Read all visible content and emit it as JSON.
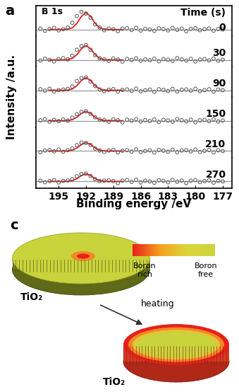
{
  "figure": {
    "panel_label": "a",
    "spectrum_label": "B 1s",
    "time_header": "Time (s)",
    "xlabel": "Binding energy /eV",
    "ylabel": "Intensity /a.u."
  },
  "chart_data": [
    {
      "type": "line",
      "title": "0",
      "xlim": [
        197.5,
        176
      ],
      "xticks": [
        195,
        192,
        189,
        186,
        183,
        180,
        177
      ],
      "ylim": [
        -0.4,
        1.4
      ],
      "yticks": [],
      "tick_labels": false,
      "series": [
        {
          "type": "line",
          "color": "#999999",
          "line_style": "solid",
          "x": [
            197.5,
            176
          ],
          "values": [
            0,
            0
          ]
        },
        {
          "type": "scatter",
          "marker": "o",
          "color": "#555555",
          "x": [
            197,
            196.5,
            196,
            195.5,
            195,
            194.5,
            194,
            193.5,
            193,
            192.5,
            192,
            191.5,
            191,
            190.5,
            190,
            189.5,
            189,
            188.5,
            188,
            187.5,
            187,
            186.5,
            186,
            185.5,
            185,
            184.5,
            184,
            183.5,
            183,
            182.5,
            182,
            181.5,
            181,
            180.5,
            180,
            179.5,
            179,
            178.5,
            178,
            177.5,
            177
          ],
          "values": [
            0.05,
            -0.08,
            0.03,
            0.1,
            -0.05,
            0.02,
            0.12,
            0.4,
            0.8,
            1.05,
            0.95,
            0.7,
            0.3,
            0.12,
            -0.04,
            0.06,
            0.02,
            -0.1,
            0.05,
            0.08,
            -0.03,
            0.1,
            -0.06,
            0.04,
            0.0,
            -0.08,
            0.07,
            0.03,
            -0.05,
            0.09,
            -0.02,
            0.05,
            -0.1,
            0.04,
            0.08,
            -0.04,
            0.02,
            0.06,
            -0.07,
            0.03,
            0.0
          ]
        },
        {
          "type": "line",
          "color": "#e02020",
          "line_style": "solid",
          "x": [
            196,
            195.5,
            195,
            194.5,
            194,
            193.5,
            193,
            192.5,
            192,
            191.5,
            191,
            190.5,
            190,
            189.5,
            189,
            188.5,
            188
          ],
          "values": [
            0,
            0,
            0,
            0,
            0.02,
            0.1,
            0.36,
            0.78,
            1,
            0.78,
            0.36,
            0.1,
            0.02,
            0,
            0,
            0,
            0
          ]
        }
      ]
    },
    {
      "type": "line",
      "title": "30",
      "xlim": [
        197.5,
        176
      ],
      "xticks": [
        195,
        192,
        189,
        186,
        183,
        180,
        177
      ],
      "ylim": [
        -0.4,
        1.4
      ],
      "yticks": [],
      "tick_labels": false,
      "series": [
        {
          "type": "line",
          "color": "#999999",
          "line_style": "solid",
          "x": [
            197.5,
            176
          ],
          "values": [
            0,
            0
          ]
        },
        {
          "type": "scatter",
          "marker": "o",
          "color": "#555555",
          "x": [
            197,
            196.5,
            196,
            195.5,
            195,
            194.5,
            194,
            193.5,
            193,
            192.5,
            192,
            191.5,
            191,
            190.5,
            190,
            189.5,
            189,
            188.5,
            188,
            187.5,
            187,
            186.5,
            186,
            185.5,
            185,
            184.5,
            184,
            183.5,
            183,
            182.5,
            182,
            181.5,
            181,
            180.5,
            180,
            179.5,
            179,
            178.5,
            178,
            177.5,
            177
          ],
          "values": [
            -0.04,
            0.07,
            0.0,
            -0.09,
            0.05,
            0.1,
            0.03,
            0.25,
            0.6,
            0.82,
            0.88,
            0.6,
            0.28,
            0.1,
            0.04,
            -0.06,
            0.08,
            0.02,
            -0.1,
            0.06,
            0.0,
            0.09,
            -0.05,
            0.03,
            -0.02,
            0.07,
            -0.08,
            0.05,
            0.01,
            -0.06,
            0.1,
            0.03,
            -0.04,
            0.06,
            -0.09,
            0.02,
            0.05,
            -0.03,
            0.08,
            -0.05,
            0.01
          ]
        },
        {
          "type": "line",
          "color": "#e02020",
          "line_style": "solid",
          "x": [
            196,
            195.5,
            195,
            194.5,
            194,
            193.5,
            193,
            192.5,
            192,
            191.5,
            191,
            190.5,
            190,
            189.5,
            189,
            188.5,
            188
          ],
          "values": [
            0,
            0,
            0,
            0,
            0.01,
            0.09,
            0.31,
            0.66,
            0.85,
            0.66,
            0.31,
            0.09,
            0.01,
            0,
            0,
            0,
            0
          ]
        }
      ]
    },
    {
      "type": "line",
      "title": "90",
      "xlim": [
        197.5,
        176
      ],
      "xticks": [
        195,
        192,
        189,
        186,
        183,
        180,
        177
      ],
      "ylim": [
        -0.4,
        1.4
      ],
      "yticks": [],
      "tick_labels": false,
      "series": [
        {
          "type": "line",
          "color": "#999999",
          "line_style": "solid",
          "x": [
            197.5,
            176
          ],
          "values": [
            0,
            0
          ]
        },
        {
          "type": "scatter",
          "marker": "o",
          "color": "#555555",
          "x": [
            197,
            196.5,
            196,
            195.5,
            195,
            194.5,
            194,
            193.5,
            193,
            192.5,
            192,
            191.5,
            191,
            190.5,
            190,
            189.5,
            189,
            188.5,
            188,
            187.5,
            187,
            186.5,
            186,
            185.5,
            185,
            184.5,
            184,
            183.5,
            183,
            182.5,
            182,
            181.5,
            181,
            180.5,
            180,
            179.5,
            179,
            178.5,
            178,
            177.5,
            177
          ],
          "values": [
            0.06,
            -0.02,
            0.09,
            -0.07,
            0.01,
            0.04,
            0.08,
            0.22,
            0.55,
            0.72,
            0.76,
            0.52,
            0.25,
            0.05,
            -0.05,
            0.03,
            0.07,
            -0.08,
            0.02,
            0.05,
            -0.03,
            0.1,
            -0.06,
            0.0,
            0.04,
            -0.09,
            0.06,
            0.02,
            -0.04,
            0.08,
            -0.07,
            0.03,
            0.05,
            -0.02,
            0.09,
            -0.05,
            0.01,
            0.06,
            -0.08,
            0.04,
            0.0
          ]
        },
        {
          "type": "line",
          "color": "#e02020",
          "line_style": "solid",
          "x": [
            196,
            195.5,
            195,
            194.5,
            194,
            193.5,
            193,
            192.5,
            192,
            191.5,
            191,
            190.5,
            190,
            189.5,
            189,
            188.5,
            188
          ],
          "values": [
            0,
            0,
            0,
            0,
            0.01,
            0.08,
            0.27,
            0.58,
            0.75,
            0.58,
            0.27,
            0.08,
            0.01,
            0,
            0,
            0,
            0
          ]
        }
      ]
    },
    {
      "type": "line",
      "title": "150",
      "xlim": [
        197.5,
        176
      ],
      "xticks": [
        195,
        192,
        189,
        186,
        183,
        180,
        177
      ],
      "ylim": [
        -0.4,
        1.4
      ],
      "yticks": [],
      "tick_labels": false,
      "series": [
        {
          "type": "line",
          "color": "#999999",
          "line_style": "solid",
          "x": [
            197.5,
            176
          ],
          "values": [
            0,
            0
          ]
        },
        {
          "type": "scatter",
          "marker": "o",
          "color": "#555555",
          "x": [
            197,
            196.5,
            196,
            195.5,
            195,
            194.5,
            194,
            193.5,
            193,
            192.5,
            192,
            191.5,
            191,
            190.5,
            190,
            189.5,
            189,
            188.5,
            188,
            187.5,
            187,
            186.5,
            186,
            185.5,
            185,
            184.5,
            184,
            183.5,
            183,
            182.5,
            182,
            181.5,
            181,
            180.5,
            180,
            179.5,
            179,
            178.5,
            178,
            177.5,
            177
          ],
          "values": [
            0.02,
            0.08,
            -0.06,
            0.04,
            -0.03,
            0.07,
            0.0,
            0.18,
            0.38,
            0.52,
            0.56,
            0.4,
            0.2,
            0.06,
            0.04,
            -0.06,
            0.08,
            0.02,
            -0.1,
            0.06,
            0.0,
            0.09,
            -0.05,
            0.03,
            -0.02,
            0.07,
            -0.08,
            0.05,
            0.01,
            -0.06,
            0.1,
            0.03,
            -0.04,
            0.06,
            -0.09,
            0.02,
            0.05,
            -0.03,
            0.08,
            -0.05,
            0.01
          ]
        },
        {
          "type": "line",
          "color": "#e02020",
          "line_style": "solid",
          "x": [
            196,
            195.5,
            195,
            194.5,
            194,
            193.5,
            193,
            192.5,
            192,
            191.5,
            191,
            190.5,
            190,
            189.5,
            189,
            188.5,
            188
          ],
          "values": [
            0,
            0,
            0,
            0,
            0.01,
            0.06,
            0.2,
            0.43,
            0.55,
            0.43,
            0.2,
            0.06,
            0.01,
            0,
            0,
            0,
            0
          ]
        }
      ]
    },
    {
      "type": "line",
      "title": "210",
      "xlim": [
        197.5,
        176
      ],
      "xticks": [
        195,
        192,
        189,
        186,
        183,
        180,
        177
      ],
      "ylim": [
        -0.4,
        1.4
      ],
      "yticks": [],
      "tick_labels": false,
      "series": [
        {
          "type": "line",
          "color": "#999999",
          "line_style": "solid",
          "x": [
            197.5,
            176
          ],
          "values": [
            0,
            0
          ]
        },
        {
          "type": "scatter",
          "marker": "o",
          "color": "#555555",
          "x": [
            197,
            196.5,
            196,
            195.5,
            195,
            194.5,
            194,
            193.5,
            193,
            192.5,
            192,
            191.5,
            191,
            190.5,
            190,
            189.5,
            189,
            188.5,
            188,
            187.5,
            187,
            186.5,
            186,
            185.5,
            185,
            184.5,
            184,
            183.5,
            183,
            182.5,
            182,
            181.5,
            181,
            180.5,
            180,
            179.5,
            179,
            178.5,
            178,
            177.5,
            177
          ],
          "values": [
            -0.07,
            0.03,
            0.06,
            -0.02,
            0.09,
            -0.04,
            0.05,
            0.15,
            0.35,
            0.5,
            0.48,
            0.36,
            0.15,
            0.03,
            -0.05,
            0.03,
            0.07,
            -0.08,
            0.02,
            0.05,
            -0.03,
            0.1,
            -0.06,
            0.0,
            0.04,
            -0.09,
            0.06,
            0.02,
            -0.04,
            0.08,
            -0.07,
            0.03,
            0.05,
            -0.02,
            0.09,
            -0.05,
            0.01,
            0.06,
            -0.08,
            0.04,
            0.0
          ]
        },
        {
          "type": "line",
          "color": "#e02020",
          "line_style": "solid",
          "x": [
            196,
            195.5,
            195,
            194.5,
            194,
            193.5,
            193,
            192.5,
            192,
            191.5,
            191,
            190.5,
            190,
            189.5,
            189,
            188.5,
            188
          ],
          "values": [
            0,
            0,
            0,
            0,
            0.01,
            0.05,
            0.18,
            0.39,
            0.5,
            0.39,
            0.18,
            0.05,
            0.01,
            0,
            0,
            0,
            0
          ]
        }
      ]
    },
    {
      "type": "line",
      "title": "270",
      "xlim": [
        197.5,
        176
      ],
      "xticks": [
        195,
        192,
        189,
        186,
        183,
        180,
        177
      ],
      "ylim": [
        -0.4,
        1.4
      ],
      "yticks": [],
      "tick_labels": "x",
      "series": [
        {
          "type": "line",
          "color": "#999999",
          "line_style": "solid",
          "x": [
            197.5,
            176
          ],
          "values": [
            0,
            0
          ]
        },
        {
          "type": "scatter",
          "marker": "o",
          "color": "#555555",
          "x": [
            197,
            196.5,
            196,
            195.5,
            195,
            194.5,
            194,
            193.5,
            193,
            192.5,
            192,
            191.5,
            191,
            190.5,
            190,
            189.5,
            189,
            188.5,
            188,
            187.5,
            187,
            186.5,
            186,
            185.5,
            185,
            184.5,
            184,
            183.5,
            183,
            182.5,
            182,
            181.5,
            181,
            180.5,
            180,
            179.5,
            179,
            178.5,
            178,
            177.5,
            177
          ],
          "values": [
            0.04,
            -0.05,
            0.02,
            0.08,
            -0.06,
            0.03,
            0.06,
            0.14,
            0.3,
            0.44,
            0.46,
            0.32,
            0.14,
            0.02,
            0.05,
            0.06,
            0.02,
            -0.1,
            0.05,
            0.08,
            -0.03,
            0.1,
            -0.06,
            0.04,
            0.0,
            -0.08,
            0.07,
            0.03,
            -0.05,
            0.09,
            -0.02,
            0.05,
            -0.1,
            0.04,
            0.08,
            -0.04,
            0.02,
            0.06,
            -0.07,
            0.03,
            0.0
          ]
        },
        {
          "type": "line",
          "color": "#e02020",
          "line_style": "solid",
          "x": [
            196,
            195.5,
            195,
            194.5,
            194,
            193.5,
            193,
            192.5,
            192,
            191.5,
            191,
            190.5,
            190,
            189.5,
            189,
            188.5,
            188
          ],
          "values": [
            0,
            0,
            0,
            0,
            0.01,
            0.05,
            0.16,
            0.35,
            0.45,
            0.35,
            0.16,
            0.05,
            0.01,
            0,
            0,
            0,
            0
          ]
        }
      ]
    }
  ],
  "diagram": {
    "panel_label": "c",
    "gradient": {
      "left": "Boron\nrich",
      "right": "Boron\nfree"
    },
    "before": {
      "label": "TiO₂"
    },
    "arrow": {
      "label": "heating"
    },
    "after": {
      "label": "TiO₂"
    }
  }
}
